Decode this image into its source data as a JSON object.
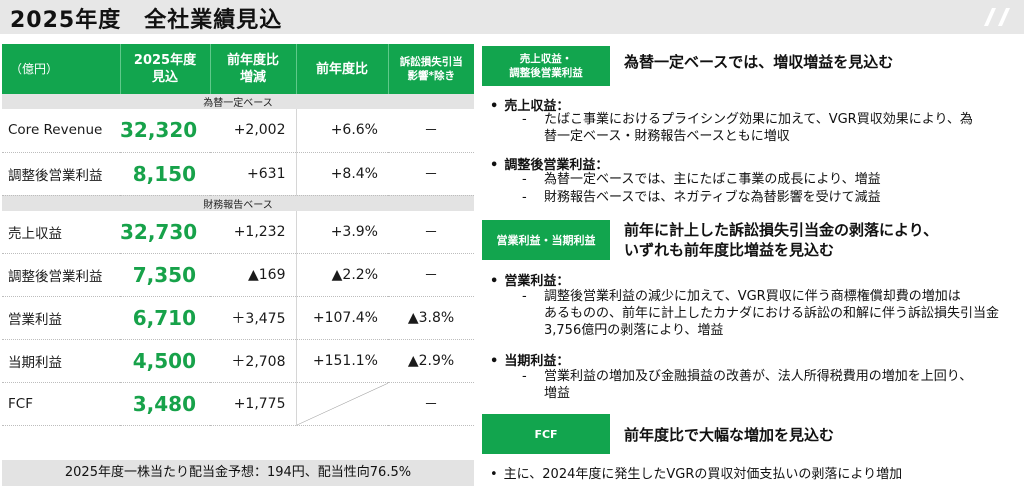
{
  "page_title": "2025年度　全社業績見込",
  "table": {
    "headers": {
      "unit": "（億円）",
      "forecast": [
        "2025年度",
        "見込"
      ],
      "yoy_change": [
        "前年度比",
        "増減"
      ],
      "yoy_ratio": "前年度比",
      "excl_litigation": [
        "訴訟損失引当",
        "影響*除き"
      ]
    },
    "sections": {
      "constant_fx": "為替一定ベース",
      "reported": "財務報告ベース"
    },
    "rows": [
      {
        "label": "Core Revenue",
        "value": "32,320",
        "change": "+2,002",
        "ratio": "+6.6%",
        "excl": "－"
      },
      {
        "label": "調整後営業利益",
        "value": "8,150",
        "change": "+631",
        "ratio": "+8.4%",
        "excl": "－"
      },
      {
        "label": "売上収益",
        "value": "32,730",
        "change": "+1,232",
        "ratio": "+3.9%",
        "excl": "－"
      },
      {
        "label": "調整後営業利益",
        "value": "7,350",
        "change": "▲169",
        "ratio": "▲2.2%",
        "excl": "－"
      },
      {
        "label": "営業利益",
        "value": "6,710",
        "change": "＋3,475",
        "ratio": "+107.4%",
        "excl": "▲3.8%"
      },
      {
        "label": "当期利益",
        "value": "4,500",
        "change": "＋2,708",
        "ratio": "+151.1%",
        "excl": "▲2.9%"
      },
      {
        "label": "FCF",
        "value": "3,480",
        "change": "+1,775",
        "ratio": "",
        "excl": "－"
      }
    ]
  },
  "dividend_note": "2025年度一株当たり配当金予想：194円、配当性向76.5%",
  "blocks": [
    {
      "tag": [
        "売上収益・",
        "調整後営業利益"
      ],
      "heading": [
        "為替一定ベースでは、増収増益を見込む"
      ],
      "bullets": [
        {
          "title": "売上収益：",
          "subs": [
            [
              "たばこ事業におけるプライシング効果に加えて、VGR買収効果により、為",
              "替一定ベース・財務報告ベースともに増収"
            ]
          ]
        },
        {
          "title": "調整後営業利益：",
          "subs": [
            [
              "為替一定ベースでは、主にたばこ事業の成長により、増益"
            ],
            [
              "財務報告ベースでは、ネガティブな為替影響を受けて減益"
            ]
          ]
        }
      ]
    },
    {
      "tag": [
        "営業利益・当期利益"
      ],
      "heading": [
        "前年に計上した訴訟損失引当金の剥落により、",
        "いずれも前年度比増益を見込む"
      ],
      "bullets": [
        {
          "title": "営業利益：",
          "subs": [
            [
              "調整後営業利益の減少に加えて、VGR買収に伴う商標権償却費の増加は",
              "あるものの、前年に計上したカナダにおける訴訟の和解に伴う訴訟損失引当金",
              "3,756億円の剥落により、増益"
            ]
          ]
        },
        {
          "title": "当期利益：",
          "subs": [
            [
              "営業利益の増加及び金融損益の改善が、法人所得税費用の増加を上回り、",
              "増益"
            ]
          ]
        }
      ]
    },
    {
      "tag": [
        "FCF"
      ],
      "heading": [
        "前年度比で大幅な増加を見込む"
      ],
      "bullets": [
        {
          "title": "",
          "subs": []
        }
      ],
      "note": "主に、2024年度に発生したVGRの買収対価支払いの剥落により増加"
    }
  ],
  "colors": {
    "brand_green": "#12a54e",
    "value_green": "#17a24a",
    "section_gray": "#e3e3e3"
  }
}
